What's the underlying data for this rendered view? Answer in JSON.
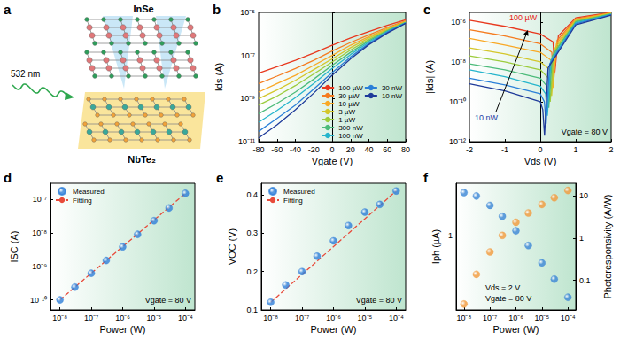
{
  "diagram": {
    "label": "a",
    "laser": "532 nm",
    "top_layer": "InSe",
    "bottom_layer": "NbTe₂"
  },
  "chart_data": [
    {
      "title": "b",
      "type": "line",
      "xlabel": "Vgate (V)",
      "ylabel": "Ids (A)",
      "log": "y",
      "grid": false,
      "legend": "lower right",
      "line_style": "solid",
      "x": [
        -80,
        -60,
        -40,
        -20,
        0,
        20,
        40,
        60,
        80
      ],
      "xlim": [
        -80,
        80
      ],
      "xticks": [
        -80,
        -60,
        -40,
        -20,
        0,
        20,
        40,
        60,
        80
      ],
      "ylim": [
        1e-11,
        1e-05
      ],
      "yticks": [
        {
          "value": 1e-11,
          "label": "10⁻¹¹"
        },
        {
          "value": 1e-09,
          "label": "10⁻⁹"
        },
        {
          "value": 1e-07,
          "label": "10⁻⁷"
        },
        {
          "value": 1e-05,
          "label": "10⁻⁵"
        }
      ],
      "series": [
        {
          "name": "100 µW",
          "color": "#e8381e",
          "values": [
            1.5e-08,
            3e-08,
            6e-08,
            1.3e-07,
            3e-07,
            6.5e-07,
            1.3e-06,
            2.5e-06,
            4.5e-06
          ]
        },
        {
          "name": "30 µW",
          "color": "#f57c20",
          "values": [
            5e-09,
            1.1e-08,
            2.5e-08,
            6e-08,
            1.6e-07,
            4e-07,
            9e-07,
            2e-06,
            4e-06
          ]
        },
        {
          "name": "10 µW",
          "color": "#f9a825",
          "values": [
            2e-09,
            5e-09,
            1.2e-08,
            3.5e-08,
            1e-07,
            3e-07,
            7.5e-07,
            1.8e-06,
            3.8e-06
          ]
        },
        {
          "name": "3 µW",
          "color": "#d4c62a",
          "values": [
            1e-09,
            2.5e-09,
            7e-09,
            2.2e-08,
            7e-08,
            2.3e-07,
            6.5e-07,
            1.6e-06,
            3.6e-06
          ]
        },
        {
          "name": "1 µW",
          "color": "#9ccc3c",
          "values": [
            5e-10,
            1.3e-09,
            4e-09,
            1.4e-08,
            5e-08,
            1.8e-07,
            5.5e-07,
            1.5e-06,
            3.5e-06
          ]
        },
        {
          "name": "300 nW",
          "color": "#4cbb7a",
          "values": [
            2e-10,
            6e-10,
            2e-09,
            8e-09,
            3.5e-08,
            1.4e-07,
            4.8e-07,
            1.4e-06,
            3.4e-06
          ]
        },
        {
          "name": "100 nW",
          "color": "#26b5cc",
          "values": [
            8e-11,
            2.8e-10,
            1.1e-09,
            5e-09,
            2.5e-08,
            1.1e-07,
            4.2e-07,
            1.3e-06,
            3.3e-06
          ]
        },
        {
          "name": "30 nW",
          "color": "#2a7fd8",
          "values": [
            3e-11,
            1.2e-10,
            5e-10,
            2.8e-09,
            1.6e-08,
            8.5e-08,
            3.6e-07,
            1.2e-06,
            3.2e-06
          ]
        },
        {
          "name": "10 nW",
          "color": "#1e3a9a",
          "values": [
            1.5e-11,
            6e-11,
            3e-10,
            1.8e-09,
            1.2e-08,
            7e-08,
            3.2e-07,
            1.1e-06,
            3.1e-06
          ]
        }
      ]
    },
    {
      "title": "c",
      "type": "line",
      "xlabel": "Vds (V)",
      "ylabel": "|Ids| (A)",
      "log": "y",
      "grid": false,
      "line_style": "solid",
      "xlim": [
        -2,
        2
      ],
      "xticks": [
        -2,
        -1,
        0,
        1,
        2
      ],
      "ylim": [
        1e-12,
        3e-06
      ],
      "yticks": [
        {
          "value": 1e-12,
          "label": "10⁻¹²"
        },
        {
          "value": 1e-10,
          "label": "10⁻¹⁰"
        },
        {
          "value": 1e-08,
          "label": "10⁻⁸"
        },
        {
          "value": 1e-06,
          "label": "10⁻⁶"
        }
      ],
      "annotations": [
        {
          "text": "Vgate = 80 V",
          "color": "#000000"
        },
        {
          "text": "100 µW",
          "color": "#e8231a"
        },
        {
          "text": "10 nW",
          "color": "#1f3fa8"
        }
      ],
      "series": [
        {
          "color": "#e8381e",
          "x": [
            -2,
            -1,
            0,
            0.36,
            0.41,
            0.51,
            1,
            2
          ],
          "values": [
            1.2e-06,
            6e-07,
            2.5e-07,
            1e-07,
            3e-09,
            2e-07,
            1.6e-06,
            3e-06
          ]
        },
        {
          "color": "#f57c20",
          "x": [
            -2,
            -1,
            0,
            0.325,
            0.375,
            0.475,
            1,
            2
          ],
          "values": [
            4e-07,
            2e-07,
            8e-08,
            3e-08,
            1e-09,
            1.2e-07,
            1.4e-06,
            2.9e-06
          ]
        },
        {
          "color": "#f9a825",
          "x": [
            -2,
            -1,
            0,
            0.305,
            0.355,
            0.455,
            1,
            2
          ],
          "values": [
            1.5e-07,
            7e-08,
            3e-08,
            1.2e-08,
            5e-10,
            8e-08,
            1.3e-06,
            2.8e-06
          ]
        },
        {
          "color": "#d4c62a",
          "x": [
            -2,
            -1,
            0,
            0.27,
            0.32,
            0.42,
            1,
            2
          ],
          "values": [
            5e-08,
            2.5e-08,
            1e-08,
            4e-09,
            2e-10,
            5e-08,
            1.2e-06,
            2.7e-06
          ]
        },
        {
          "color": "#9ccc3c",
          "x": [
            -2,
            -1,
            0,
            0.23,
            0.28,
            0.38,
            1,
            2
          ],
          "values": [
            2e-08,
            1e-08,
            4e-09,
            1.5e-09,
            1e-10,
            3e-08,
            1.1e-06,
            2.6e-06
          ]
        },
        {
          "color": "#4cbb7a",
          "x": [
            -2,
            -1,
            0,
            0.19,
            0.24,
            0.34,
            1,
            2
          ],
          "values": [
            8e-09,
            4e-09,
            1.5e-09,
            6e-10,
            5e-11,
            2e-08,
            1e-06,
            2.5e-06
          ]
        },
        {
          "color": "#26b5cc",
          "x": [
            -2,
            -1,
            0,
            0.15,
            0.2,
            0.3,
            1,
            2
          ],
          "values": [
            4e-09,
            1.8e-09,
            6e-10,
            2.5e-10,
            2e-11,
            1.2e-08,
            9e-07,
            2.4e-06
          ]
        },
        {
          "color": "#2a7fd8",
          "x": [
            -2,
            -1,
            0,
            0.115,
            0.165,
            0.265,
            1,
            2
          ],
          "values": [
            1.5e-09,
            7e-10,
            2.5e-10,
            1e-10,
            8e-12,
            8e-09,
            8e-07,
            2.3e-06
          ]
        },
        {
          "color": "#1e3a9a",
          "x": [
            -2,
            -1,
            0,
            0.07,
            0.12,
            0.22,
            1,
            2
          ],
          "values": [
            8e-10,
            3.5e-10,
            1e-10,
            4e-11,
            2e-12,
            5e-09,
            7e-07,
            2.2e-06
          ]
        }
      ]
    },
    {
      "title": "d",
      "type": "scatter",
      "xlabel": "Power (W)",
      "ylabel": "ISC (A)",
      "log": true,
      "grid": false,
      "legend": "upper left",
      "xlim": [
        5e-09,
        0.0002
      ],
      "xticks": [
        {
          "value": 1e-08,
          "label": "10⁻⁸"
        },
        {
          "value": 1e-07,
          "label": "10⁻⁷"
        },
        {
          "value": 1e-06,
          "label": "10⁻⁶"
        },
        {
          "value": 1e-05,
          "label": "10⁻⁵"
        },
        {
          "value": 0.0001,
          "label": "10⁻⁴"
        }
      ],
      "ylim": [
        5e-11,
        3e-07
      ],
      "yticks": [
        {
          "value": 1e-10,
          "label": "10⁻¹⁰"
        },
        {
          "value": 1e-09,
          "label": "10⁻⁹"
        },
        {
          "value": 1e-08,
          "label": "10⁻⁸"
        },
        {
          "value": 1e-07,
          "label": "10⁻⁷"
        }
      ],
      "annotations": [
        {
          "text": "Vgate = 80 V",
          "color": "#000000"
        }
      ],
      "series": [
        {
          "name": "Measured",
          "type": "scatter",
          "marker": "circle",
          "color": "#2f7fd9",
          "x": [
            1e-08,
            3e-08,
            1e-07,
            3e-07,
            1e-06,
            3e-06,
            1e-05,
            3e-05,
            0.0001
          ],
          "values": [
            1e-10,
            2.4e-10,
            6.2e-10,
            1.5e-09,
            3.8e-09,
            9e-09,
            2.3e-08,
            5.5e-08,
            1.5e-07
          ]
        },
        {
          "name": "Fitting",
          "type": "line",
          "line_style": "dashed",
          "color": "#e84a3a",
          "x": [
            1e-08,
            0.0001
          ],
          "values": [
            1e-10,
            1.5e-07
          ]
        }
      ]
    },
    {
      "title": "e",
      "type": "scatter",
      "xlabel": "Power (W)",
      "ylabel": "VOC (V)",
      "log": "x",
      "grid": false,
      "legend": "upper left",
      "xlim": [
        5e-09,
        0.0002
      ],
      "xticks": [
        {
          "value": 1e-08,
          "label": "10⁻⁸"
        },
        {
          "value": 1e-07,
          "label": "10⁻⁷"
        },
        {
          "value": 1e-06,
          "label": "10⁻⁶"
        },
        {
          "value": 1e-05,
          "label": "10⁻⁵"
        },
        {
          "value": 0.0001,
          "label": "10⁻⁴"
        }
      ],
      "ylim": [
        0.1,
        0.43
      ],
      "yticks": [
        0.1,
        0.2,
        0.3,
        0.4
      ],
      "annotations": [
        {
          "text": "Vgate = 80 V",
          "color": "#000000"
        }
      ],
      "series": [
        {
          "name": "Measured",
          "type": "scatter",
          "marker": "circle",
          "color": "#2f7fd9",
          "x": [
            1e-08,
            3e-08,
            1e-07,
            3e-07,
            1e-06,
            3e-06,
            1e-05,
            3e-05,
            0.0001
          ],
          "values": [
            0.12,
            0.165,
            0.2,
            0.24,
            0.28,
            0.32,
            0.355,
            0.375,
            0.41
          ]
        },
        {
          "name": "Fitting",
          "type": "line",
          "line_style": "dashed",
          "color": "#e84a3a",
          "x": [
            1e-08,
            0.0001
          ],
          "values": [
            0.12,
            0.41
          ]
        }
      ]
    },
    {
      "title": "f",
      "type": "scatter",
      "xlabel": "Power (W)",
      "ylabel": "Iph (µA)",
      "y2label": "Photoresponsivity (A/W)",
      "log": true,
      "grid": false,
      "xlim": [
        5e-09,
        0.0002
      ],
      "xticks": [
        {
          "value": 1e-08,
          "label": "10⁻⁸"
        },
        {
          "value": 1e-07,
          "label": "10⁻⁷"
        },
        {
          "value": 1e-06,
          "label": "10⁻⁶"
        },
        {
          "value": 1e-05,
          "label": "10⁻⁵"
        },
        {
          "value": 0.0001,
          "label": "10⁻⁴"
        }
      ],
      "ylim": [
        0.1,
        5
      ],
      "yticks": [
        1
      ],
      "y2lim": [
        0.02,
        20
      ],
      "y2ticks": [
        0.1,
        1,
        10
      ],
      "annotations": [
        {
          "text": "Vds = 2 V",
          "color": "#000000"
        },
        {
          "text": "Vgate = 80 V",
          "color": "#000000"
        }
      ],
      "series": [
        {
          "type": "scatter",
          "marker": "circle",
          "color": "#f39a3c",
          "x": [
            1e-08,
            3e-08,
            1e-07,
            3e-07,
            1e-06,
            3e-06,
            1e-05,
            3e-05,
            0.0001
          ],
          "values": [
            0.12,
            0.3,
            0.6,
            1.0,
            1.5,
            2.0,
            2.6,
            3.2,
            4.0
          ]
        },
        {
          "type": "scatter",
          "marker": "circle",
          "color": "#3b86d6",
          "axis": "y2",
          "x": [
            1e-08,
            3e-08,
            1e-07,
            3e-07,
            1e-06,
            3e-06,
            1e-05,
            3e-05,
            0.0001
          ],
          "values": [
            12,
            10,
            6,
            3.3,
            1.5,
            0.67,
            0.26,
            0.107,
            0.04
          ]
        }
      ]
    }
  ]
}
